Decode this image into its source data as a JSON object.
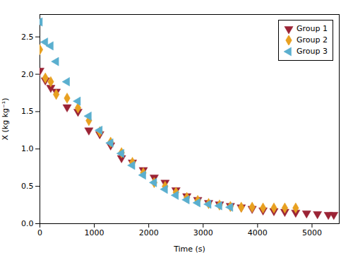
{
  "chart_data": {
    "type": "scatter",
    "xlabel": "Time (s)",
    "ylabel": "X (kg kg⁻¹)",
    "xlim": [
      0,
      5500
    ],
    "ylim": [
      0,
      2.8
    ],
    "xticks": [
      0,
      1000,
      2000,
      3000,
      4000,
      5000
    ],
    "yticks": [
      {
        "value": 0,
        "label": "0.0"
      },
      0.5,
      {
        "value": 1,
        "label": "1.0"
      },
      1.5,
      {
        "value": 2,
        "label": "2.0"
      },
      2.5
    ],
    "grid": false,
    "legend": "upper right",
    "series": [
      {
        "name": "Group 1",
        "color": "#9B2335",
        "marker": "triangle_down",
        "x": [
          0,
          100,
          200,
          300,
          500,
          700,
          900,
          1100,
          1300,
          1500,
          1700,
          1900,
          2100,
          2300,
          2500,
          2700,
          2900,
          3100,
          3300,
          3500,
          3700,
          3900,
          4100,
          4300,
          4500,
          4700,
          4900,
          5100,
          5300,
          5400
        ],
        "values": [
          2.05,
          1.92,
          1.82,
          1.77,
          1.56,
          1.5,
          1.25,
          1.2,
          1.05,
          0.88,
          0.82,
          0.72,
          0.62,
          0.55,
          0.45,
          0.37,
          0.32,
          0.28,
          0.26,
          0.24,
          0.22,
          0.2,
          0.18,
          0.17,
          0.16,
          0.15,
          0.14,
          0.13,
          0.12,
          0.12
        ]
      },
      {
        "name": "Group 2",
        "color": "#E8A020",
        "marker": "diamond",
        "x": [
          0,
          100,
          200,
          300,
          500,
          700,
          900,
          1100,
          1300,
          1500,
          1700,
          1900,
          2100,
          2300,
          2500,
          2700,
          2900,
          3100,
          3300,
          3500,
          3700,
          3900,
          4100,
          4300,
          4500,
          4700
        ],
        "values": [
          2.33,
          1.95,
          1.9,
          1.73,
          1.68,
          1.55,
          1.38,
          1.23,
          1.09,
          0.95,
          0.82,
          0.68,
          0.55,
          0.5,
          0.42,
          0.35,
          0.31,
          0.27,
          0.25,
          0.23,
          0.22,
          0.22,
          0.21,
          0.21,
          0.21,
          0.21
        ]
      },
      {
        "name": "Group 3",
        "color": "#5AAFCF",
        "marker": "triangle_left",
        "x": [
          0,
          100,
          200,
          300,
          500,
          700,
          900,
          1100,
          1300,
          1500,
          1700,
          1900,
          2100,
          2300,
          2500,
          2700,
          2900,
          3100,
          3300,
          3500
        ],
        "values": [
          2.7,
          2.43,
          2.38,
          2.17,
          1.9,
          1.64,
          1.44,
          1.25,
          1.08,
          0.94,
          0.78,
          0.65,
          0.55,
          0.46,
          0.38,
          0.32,
          0.28,
          0.26,
          0.24,
          0.22
        ]
      }
    ]
  }
}
